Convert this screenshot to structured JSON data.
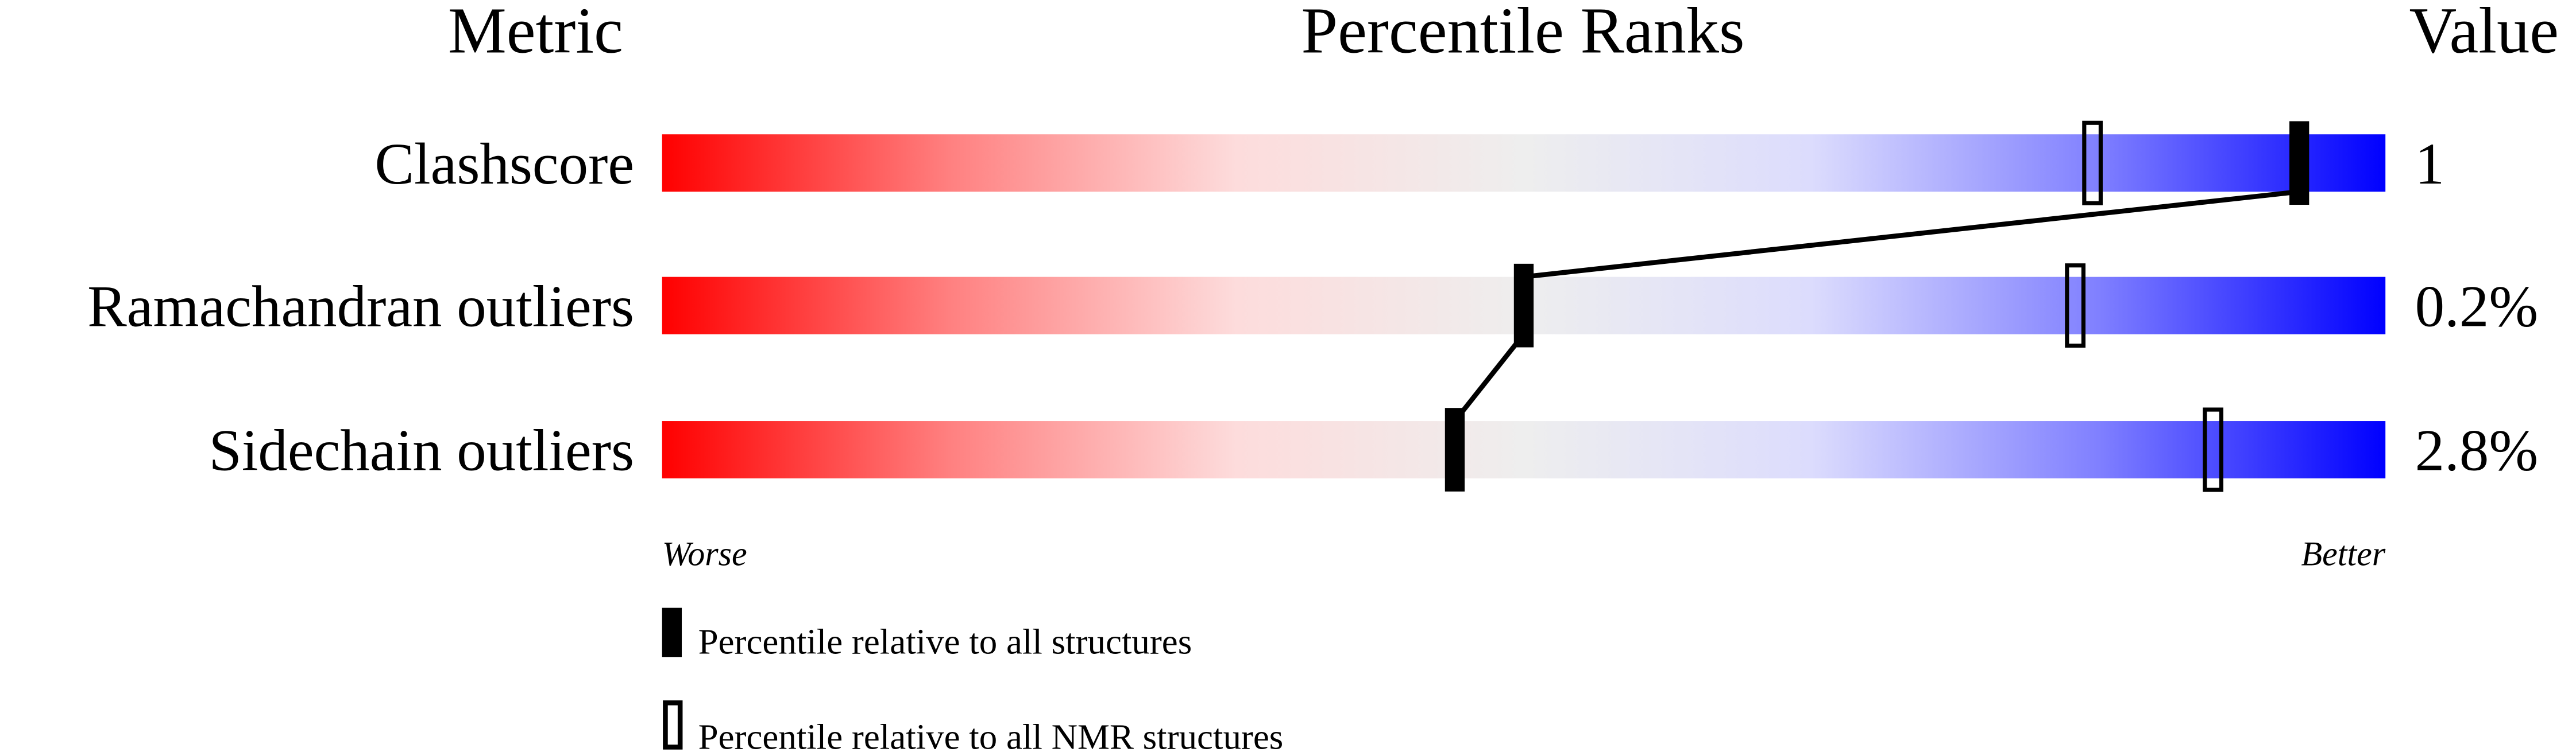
{
  "chart_data": {
    "type": "table",
    "headers": {
      "metric": "Metric",
      "ranks": "Percentile Ranks",
      "value": "Value"
    },
    "xlim": [
      0,
      100
    ],
    "axis_labels": {
      "left": "Worse",
      "right": "Better"
    },
    "gradient_colors": [
      "#ff0000",
      "#ff8080",
      "#fddcdc",
      "#eeeeee",
      "#dcdcfd",
      "#8080ff",
      "#0000ff"
    ],
    "rows": [
      {
        "metric": "Clashscore",
        "value": "1",
        "percentile_all": 95,
        "percentile_nmr": 83
      },
      {
        "metric": "Ramachandran outliers",
        "value": "0.2%",
        "percentile_all": 50,
        "percentile_nmr": 82
      },
      {
        "metric": "Sidechain outliers",
        "value": "2.8%",
        "percentile_all": 46,
        "percentile_nmr": 90
      }
    ],
    "legend": {
      "all": "Percentile relative to all structures",
      "nmr": "Percentile relative to all NMR structures"
    }
  }
}
